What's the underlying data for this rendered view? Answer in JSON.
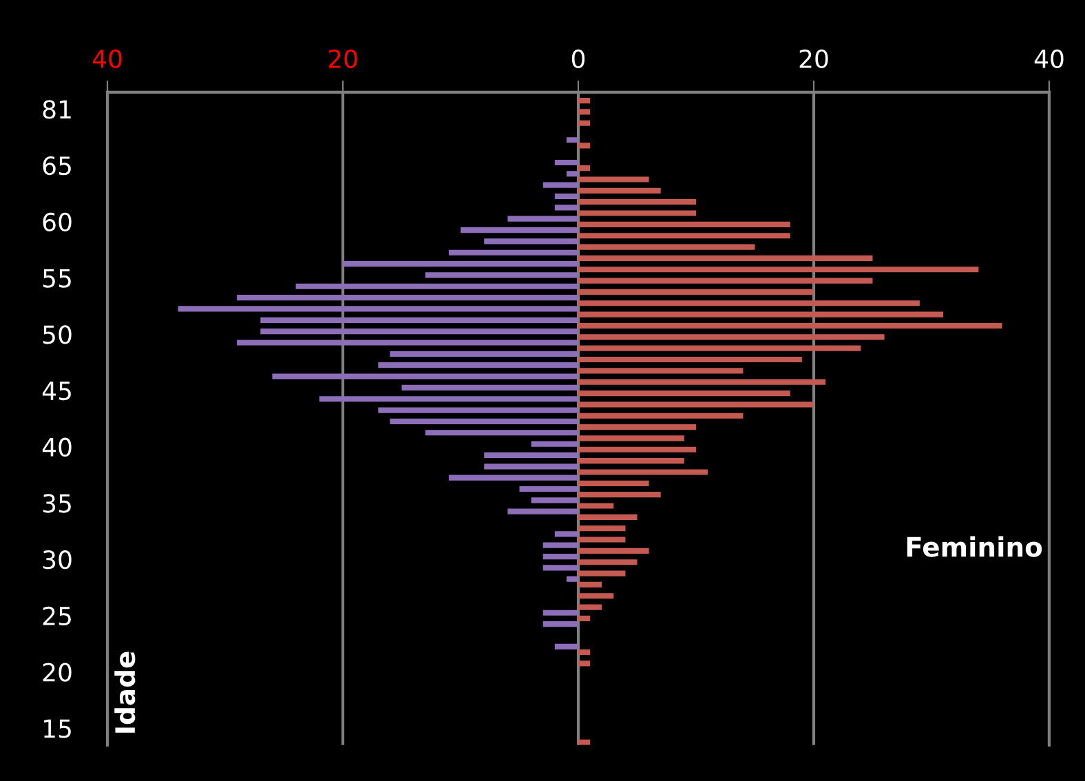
{
  "chart_data": {
    "type": "bar",
    "orientation": "horizontal",
    "ylabel": "Idade",
    "categories": [
      null,
      "81",
      null,
      null,
      null,
      null,
      "65",
      null,
      null,
      null,
      null,
      "60",
      null,
      null,
      null,
      null,
      "55",
      null,
      null,
      null,
      null,
      "50",
      null,
      null,
      null,
      null,
      "45",
      null,
      null,
      null,
      null,
      "40",
      null,
      null,
      null,
      null,
      "35",
      null,
      null,
      null,
      null,
      "30",
      null,
      null,
      null,
      null,
      "25",
      null,
      null,
      null,
      null,
      "20",
      null,
      null,
      null,
      null,
      "15",
      null
    ],
    "series": [
      {
        "color": "#8d6eb8",
        "values": [
          0,
          0,
          0,
          0,
          -1,
          0,
          -2,
          -1,
          -3,
          -2,
          -2,
          -6,
          -10,
          -8,
          -11,
          -20,
          -13,
          -24,
          -29,
          -34,
          -27,
          -27,
          -29,
          -16,
          -17,
          -26,
          -15,
          -22,
          -17,
          -16,
          -13,
          -4,
          -8,
          -8,
          -11,
          -5,
          -4,
          -6,
          0,
          -2,
          -3,
          -3,
          -3,
          -1,
          0,
          0,
          -3,
          -3,
          0,
          -2,
          0,
          0,
          0,
          0,
          0,
          0,
          0,
          0
        ]
      },
      {
        "name": "Feminino",
        "color": "#c55a52",
        "values": [
          1,
          1,
          1,
          0,
          1,
          0,
          1,
          6,
          7,
          10,
          10,
          18,
          18,
          15,
          25,
          34,
          25,
          20,
          29,
          31,
          36,
          26,
          24,
          19,
          14,
          21,
          18,
          20,
          14,
          10,
          9,
          10,
          9,
          11,
          6,
          7,
          3,
          5,
          4,
          4,
          6,
          5,
          4,
          2,
          3,
          2,
          1,
          0,
          0,
          1,
          1,
          0,
          0,
          0,
          0,
          0,
          0,
          1
        ]
      }
    ],
    "xlim": [
      -40,
      40
    ],
    "xticks": [
      {
        "value": -40,
        "label": "40"
      },
      {
        "value": -20,
        "label": "20"
      },
      0,
      20,
      40
    ],
    "grid": "x",
    "legend": false
  }
}
